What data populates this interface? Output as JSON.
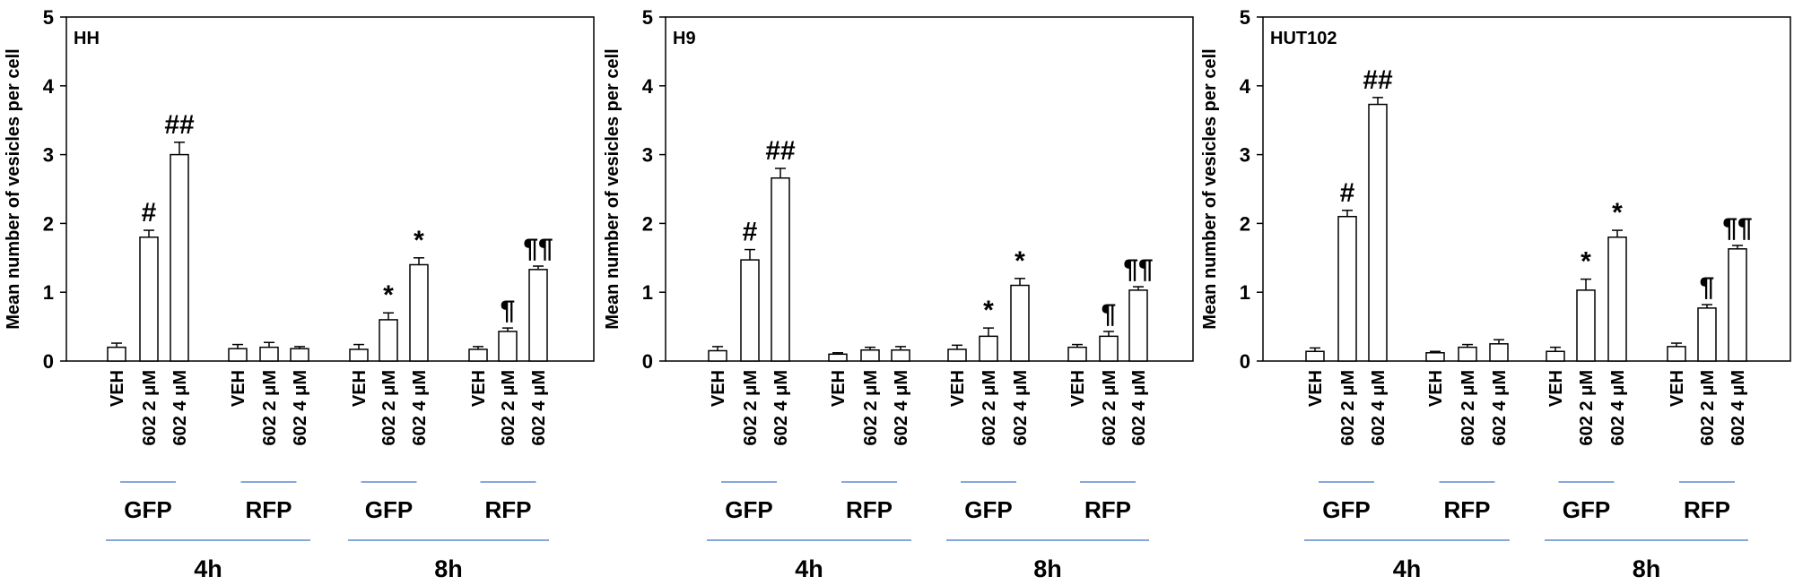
{
  "chart_data": [
    {
      "type": "bar",
      "title": "HH",
      "ylabel": "Mean number of vesicles per cell",
      "ylim": [
        0,
        5
      ],
      "yticks": [
        0,
        1,
        2,
        3,
        4,
        5
      ],
      "categories": [
        "VEH",
        "602 2 μM",
        "602 4 μM",
        "VEH",
        "602 2 μM",
        "602 4 μM",
        "VEH",
        "602 2 μM",
        "602 4 μM",
        "VEH",
        "602 2 μM",
        "602 4 μM"
      ],
      "groups": [
        "GFP",
        "RFP",
        "GFP",
        "RFP"
      ],
      "timepoints": [
        "4h",
        "8h"
      ],
      "values": [
        0.2,
        1.8,
        3.0,
        0.18,
        0.2,
        0.18,
        0.17,
        0.6,
        1.4,
        0.17,
        0.43,
        1.33
      ],
      "errors": [
        0.06,
        0.1,
        0.18,
        0.06,
        0.07,
        0.03,
        0.07,
        0.1,
        0.1,
        0.04,
        0.05,
        0.05
      ],
      "annotations": [
        "",
        "#",
        "##",
        "",
        "",
        "",
        "",
        "*",
        "*",
        "",
        "¶",
        "¶¶"
      ],
      "bar_color": "#ffffff",
      "grid": false
    },
    {
      "type": "bar",
      "title": "H9",
      "ylabel": "Mean number of vesicles per cell",
      "ylim": [
        0,
        5
      ],
      "yticks": [
        0,
        1,
        2,
        3,
        4,
        5
      ],
      "categories": [
        "VEH",
        "602 2 μM",
        "602 4 μM",
        "VEH",
        "602 2 μM",
        "602 4 μM",
        "VEH",
        "602 2 μM",
        "602 4 μM",
        "VEH",
        "602 2 μM",
        "602 4 μM"
      ],
      "groups": [
        "GFP",
        "RFP",
        "GFP",
        "RFP"
      ],
      "timepoints": [
        "4h",
        "8h"
      ],
      "values": [
        0.15,
        1.47,
        2.66,
        0.1,
        0.16,
        0.16,
        0.17,
        0.36,
        1.1,
        0.2,
        0.36,
        1.03
      ],
      "errors": [
        0.06,
        0.15,
        0.14,
        0.02,
        0.04,
        0.05,
        0.06,
        0.12,
        0.1,
        0.04,
        0.07,
        0.05
      ],
      "annotations": [
        "",
        "#",
        "##",
        "",
        "",
        "",
        "",
        "*",
        "*",
        "",
        "¶",
        "¶¶"
      ],
      "bar_color": "#ffffff",
      "grid": false
    },
    {
      "type": "bar",
      "title": "HUT102",
      "ylabel": "Mean number of vesicles per cell",
      "ylim": [
        0,
        5
      ],
      "yticks": [
        0,
        1,
        2,
        3,
        4,
        5
      ],
      "categories": [
        "VEH",
        "602 2 μM",
        "602 4 μM",
        "VEH",
        "602 2 μM",
        "602 4 μM",
        "VEH",
        "602 2 μM",
        "602 4 μM",
        "VEH",
        "602 2 μM",
        "602 4 μM"
      ],
      "groups": [
        "GFP",
        "RFP",
        "GFP",
        "RFP"
      ],
      "timepoints": [
        "4h",
        "8h"
      ],
      "values": [
        0.14,
        2.1,
        3.73,
        0.12,
        0.2,
        0.25,
        0.14,
        1.03,
        1.8,
        0.21,
        0.77,
        1.63
      ],
      "errors": [
        0.05,
        0.09,
        0.1,
        0.02,
        0.04,
        0.06,
        0.06,
        0.16,
        0.1,
        0.05,
        0.05,
        0.05
      ],
      "annotations": [
        "",
        "#",
        "##",
        "",
        "",
        "",
        "",
        "*",
        "*",
        "",
        "¶",
        "¶¶"
      ],
      "bar_color": "#ffffff",
      "grid": false
    }
  ]
}
